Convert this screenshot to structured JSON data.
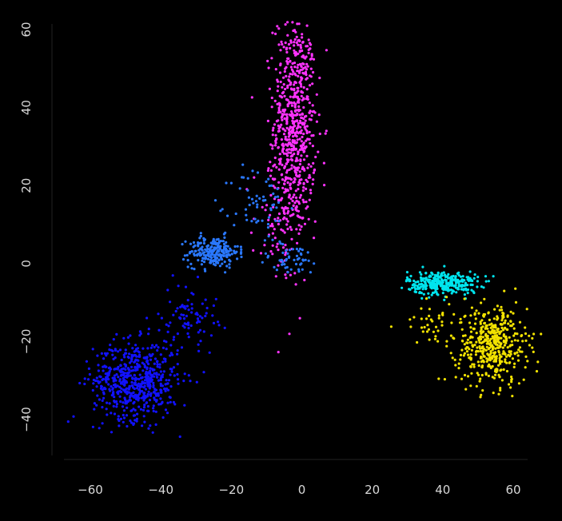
{
  "chart_data": {
    "type": "scatter",
    "title": "",
    "xlabel": "",
    "ylabel": "",
    "xlim": [
      -70,
      67
    ],
    "ylim": [
      -50,
      63
    ],
    "x_ticks": [
      -60,
      -40,
      -20,
      0,
      20,
      40,
      60
    ],
    "y_ticks": [
      -40,
      -20,
      0,
      20,
      40,
      60
    ],
    "background": "#000000",
    "grid": false,
    "legend": "none",
    "series": [
      {
        "color": "#ff33ff",
        "clusters": [
          {
            "cx": -2,
            "cy": 36,
            "sx": 3,
            "sy": 14,
            "n": 650
          },
          {
            "cx": -6,
            "cy": 10,
            "sx": 4,
            "sy": 8,
            "n": 90
          }
        ]
      },
      {
        "color": "#2a78ff",
        "clusters": [
          {
            "cx": -25,
            "cy": 3,
            "sx": 3.5,
            "sy": 2,
            "n": 220
          },
          {
            "cx": -12,
            "cy": 15,
            "sx": 4,
            "sy": 5,
            "n": 60
          },
          {
            "cx": -3,
            "cy": 1,
            "sx": 5,
            "sy": 2,
            "n": 50
          }
        ]
      },
      {
        "color": "#1212ff",
        "clusters": [
          {
            "cx": -47,
            "cy": -30,
            "sx": 6,
            "sy": 5,
            "n": 600
          },
          {
            "cx": -32,
            "cy": -13,
            "sx": 4,
            "sy": 4,
            "n": 80
          }
        ]
      },
      {
        "color": "#00e5ee",
        "clusters": [
          {
            "cx": 40,
            "cy": -5,
            "sx": 5,
            "sy": 1.5,
            "n": 320
          }
        ]
      },
      {
        "color": "#f2e200",
        "clusters": [
          {
            "cx": 54,
            "cy": -21,
            "sx": 5,
            "sy": 5,
            "n": 450
          },
          {
            "cx": 38,
            "cy": -15,
            "sx": 5,
            "sy": 3,
            "n": 40
          }
        ]
      }
    ]
  }
}
